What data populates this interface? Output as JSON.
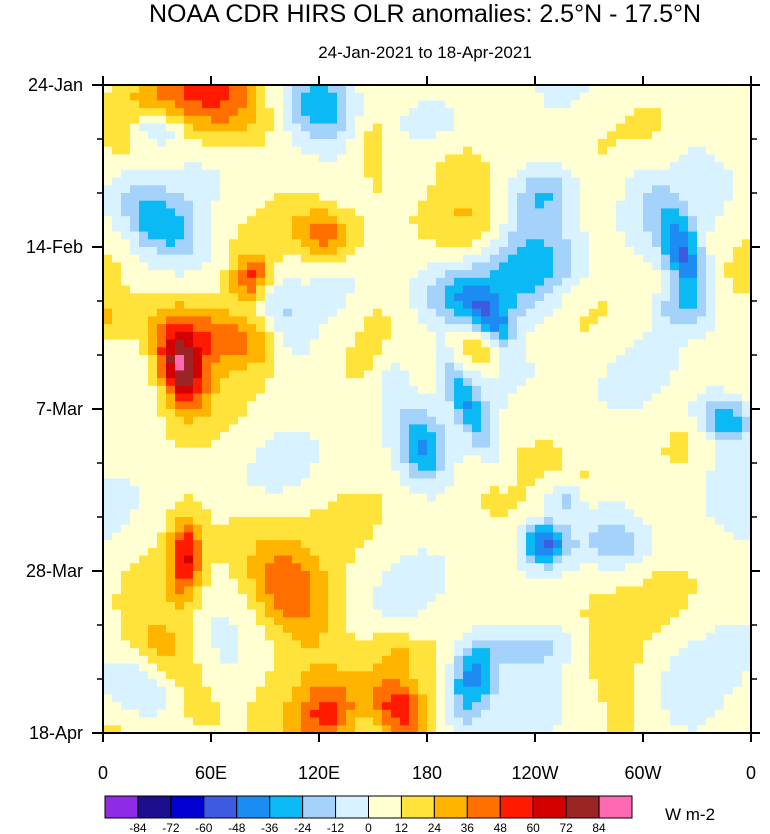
{
  "chart_data": {
    "type": "heatmap",
    "title": "NOAA CDR HIRS OLR anomalies: 2.5°N - 17.5°N",
    "subtitle": "24-Jan-2021 to 18-Apr-2021",
    "x_ticks": [
      "0",
      "60E",
      "120E",
      "180",
      "120W",
      "60W",
      "0"
    ],
    "x_range_deg": [
      0,
      360
    ],
    "y_ticks": [
      "24-Jan",
      "14-Feb",
      "7-Mar",
      "28-Mar",
      "18-Apr"
    ],
    "y_range_days": [
      0,
      84
    ],
    "units": "W m-2",
    "colorbar_levels": [
      "-84",
      "-72",
      "-60",
      "-48",
      "-36",
      "-24",
      "-12",
      "0",
      "12",
      "24",
      "36",
      "48",
      "60",
      "72",
      "84"
    ],
    "colorbar_colors": [
      "#8f2be6",
      "#1c0e8c",
      "#0000d0",
      "#3d5ae0",
      "#1c8cf2",
      "#0bbaf5",
      "#a5d2fa",
      "#d8f3ff",
      "#ffffd2",
      "#ffe23a",
      "#ffb400",
      "#ff7000",
      "#ff1a00",
      "#d40000",
      "#9b2424",
      "#ff69b4"
    ]
  }
}
